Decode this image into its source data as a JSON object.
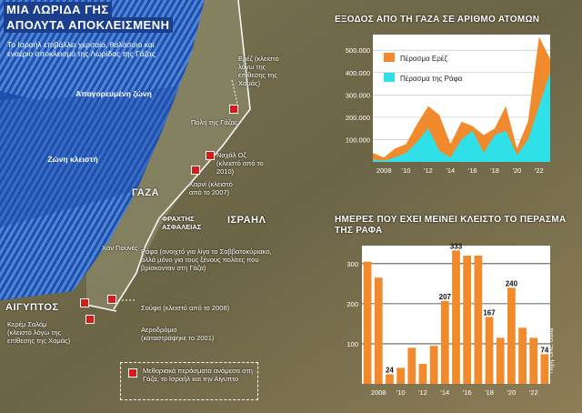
{
  "titles": {
    "line1": "ΜΙΑ ΛΩΡΙΔΑ ΓΗΣ",
    "line2": "ΑΠΟΛΥΤΑ ΑΠΟΚΛΕΙΣΜΕΝΗ",
    "subtitle": "Το Ισραήλ επιβάλλει χερσαίο, θαλάσσιο και εναέριο αποκλεισμό της Λωρίδας της Γάζας"
  },
  "map": {
    "zones": {
      "restricted": "Απαγορευμένη ζώνη",
      "closed": "Ζώνη κλειστή"
    },
    "labels": {
      "gaza": "ΓΑΖΑ",
      "israel": "ΙΣΡΑΗΛ",
      "egypt": "ΑΙΓΥΠΤΟΣ",
      "fence": "ΦΡΑΧΤΗΣ ΑΣΦΑΛΕΙΑΣ",
      "gaza_city": "Πόλη της Γάζας",
      "khan_younis": "Χαν Γιουνές"
    },
    "crossings": [
      {
        "name": "Ερέζ",
        "note": "(κλειστό λόγω της επίθεσης της Χαμάς)"
      },
      {
        "name": "Ναχάλ Οζ",
        "note": "(κλειστό από το 2010)"
      },
      {
        "name": "Καρνί",
        "note": "(κλειστό από το 2007)"
      },
      {
        "name": "Ράφα",
        "note": "(ανοιχτό για λίγο το Σαββατοκύριακο, αλλά μόνο για τους ξένους πολίτες που βρίσκονταν στη Γάζα)"
      },
      {
        "name": "Σούφα",
        "note": "(κλειστό από το 2008)"
      },
      {
        "name": "Κερέμ Σαλόμ",
        "note": "(κλειστό λόγω της επίθεσης της Χαμάς)"
      },
      {
        "name": "Αεροδρόμιο",
        "note": "(καταστράφηκε το 2001)"
      }
    ],
    "legend": "Μεθοριακά περάσματα ανάμεσα στη Γάζα, το Ισραήλ και την Αίγυπτο",
    "colors": {
      "sea": "#1e4fae",
      "crossing": "#d91a1a",
      "title_bg": "#1b3f8c"
    }
  },
  "chart_data": [
    {
      "type": "area",
      "title": "ΕΞΟΔΟΣ ΑΠΟ ΤΗ ΓΑΖΑ ΣΕ ΑΡΙΘΜΟ ΑΤΟΜΩΝ",
      "x": [
        2007,
        2008,
        2009,
        2010,
        2011,
        2012,
        2013,
        2014,
        2015,
        2016,
        2017,
        2018,
        2019,
        2020,
        2021,
        2022,
        2023
      ],
      "x_tick_labels": [
        "2008",
        "'10",
        "'12",
        "'14",
        "'16",
        "'18",
        "'20",
        "'22"
      ],
      "y_tick_labels": [
        "100.000",
        "200.000",
        "300.000",
        "400.000",
        "500.000"
      ],
      "ylim": [
        0,
        570000
      ],
      "series": [
        {
          "name": "Πέρασμα Ερέζ",
          "color": "#f08a2c",
          "values": [
            40000,
            20000,
            60000,
            80000,
            170000,
            250000,
            210000,
            80000,
            180000,
            160000,
            120000,
            150000,
            250000,
            60000,
            180000,
            560000,
            460000
          ]
        },
        {
          "name": "Πέρασμα της Ράφα",
          "color": "#2fe0e8",
          "values": [
            10000,
            5000,
            20000,
            40000,
            90000,
            150000,
            50000,
            20000,
            100000,
            140000,
            40000,
            120000,
            140000,
            30000,
            100000,
            250000,
            400000
          ]
        }
      ],
      "legend": "top-left"
    },
    {
      "type": "bar",
      "title": "ΗΜΕΡΕΣ ΠΟΥ ΕΧΕΙ ΜΕΙΝΕΙ ΚΛΕΙΣΤΟ ΤΟ ΠΕΡΑΣΜΑ ΤΗΣ ΡΑΦΑ",
      "categories": [
        "2007",
        "2008",
        "2009",
        "2010",
        "2011",
        "2012",
        "2013",
        "2014",
        "2015",
        "2016",
        "2017",
        "2018",
        "2019",
        "2020",
        "2021",
        "2022",
        "2023"
      ],
      "values": [
        305,
        265,
        24,
        40,
        90,
        50,
        95,
        207,
        333,
        320,
        320,
        167,
        115,
        240,
        140,
        115,
        74
      ],
      "data_labels": {
        "2": "24",
        "7": "207",
        "8": "333",
        "11": "167",
        "13": "240",
        "16": "74"
      },
      "x_tick_labels": [
        "2008",
        "'10",
        "'12",
        "'14",
        "'16",
        "'18",
        "'20",
        "'22"
      ],
      "y_tick_labels": [
        "100",
        "200",
        "300"
      ],
      "ylim": [
        0,
        345
      ],
      "color": "#f08a2c",
      "credit": "Πηγή: ΟΗΕ, Gisha"
    }
  ]
}
